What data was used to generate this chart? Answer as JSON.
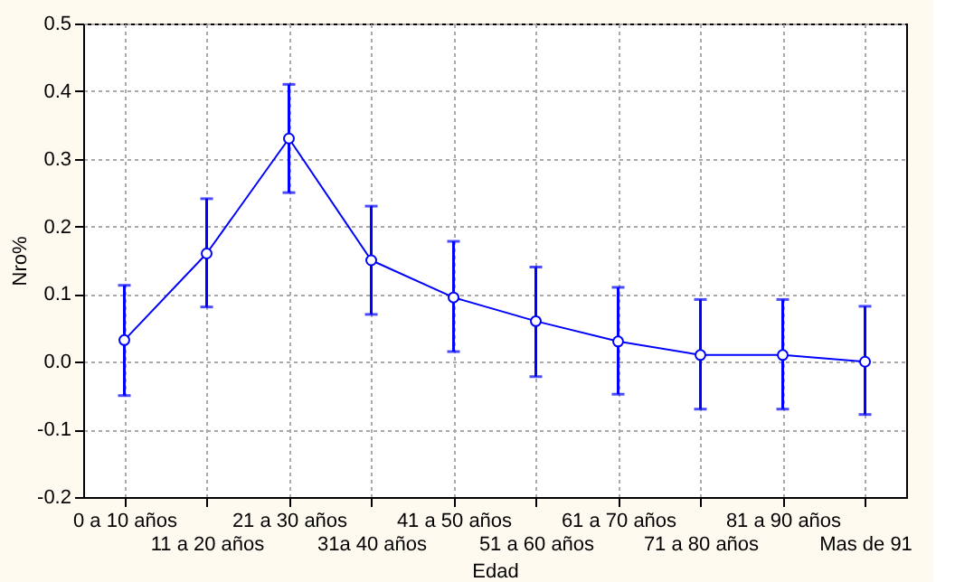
{
  "chart_data": {
    "type": "line",
    "xlabel": "Edad",
    "ylabel": "Nro%",
    "categories": [
      "0 a 10 años",
      "11 a 20 años",
      "21 a 30 años",
      "31a 40 años",
      "41 a 50 años",
      "51 a 60 años",
      "61 a 70 años",
      "71 a 80 años",
      "81 a 90 años",
      "Mas de 91"
    ],
    "series": [
      {
        "color": "#0000ff",
        "values": [
          0.032,
          0.16,
          0.33,
          0.15,
          0.095,
          0.06,
          0.03,
          0.01,
          0.01,
          0.0
        ],
        "errors": [
          [
            -0.05,
            0.113
          ],
          [
            0.081,
            0.241
          ],
          [
            0.25,
            0.41
          ],
          [
            0.07,
            0.23
          ],
          [
            0.015,
            0.178
          ],
          [
            -0.022,
            0.14
          ],
          [
            -0.048,
            0.11
          ],
          [
            -0.07,
            0.092
          ],
          [
            -0.07,
            0.092
          ],
          [
            -0.078,
            0.082
          ]
        ]
      }
    ],
    "ylim": [
      -0.2,
      0.5
    ],
    "yticks": [
      {
        "value": -0.2,
        "label": "-0.2"
      },
      {
        "value": -0.1,
        "label": "-0.1"
      },
      {
        "value": 0,
        "label": "0.0"
      },
      {
        "value": 0.1,
        "label": "0.1"
      },
      {
        "value": 0.2,
        "label": "0.2"
      },
      {
        "value": 0.3,
        "label": "0.3"
      },
      {
        "value": 0.4,
        "label": "0.4"
      },
      {
        "value": 0.5,
        "label": "0.5"
      }
    ],
    "grid": true,
    "marker": "circle",
    "line_style": "solid"
  }
}
